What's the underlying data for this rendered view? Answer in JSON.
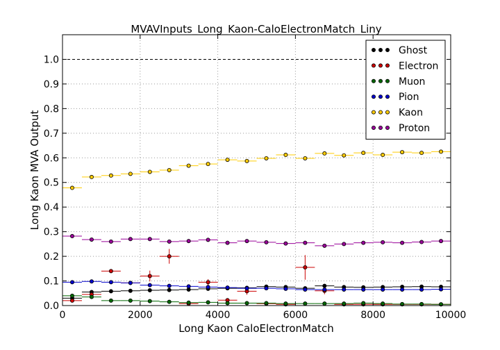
{
  "chart_data": {
    "type": "scatter",
    "title": "MVAVInputs_Long_Kaon-CaloElectronMatch_Liny",
    "xlabel": "Long Kaon CaloElectronMatch",
    "ylabel": "Long Kaon MVA Output",
    "xlim": [
      0,
      10000
    ],
    "ylim": [
      0,
      1.1
    ],
    "x_ticks": [
      0,
      2000,
      4000,
      6000,
      8000,
      10000
    ],
    "x_tick_labels": [
      "0",
      "2000",
      "4000",
      "6000",
      "8000",
      "10000"
    ],
    "y_ticks": [
      0.0,
      0.1,
      0.2,
      0.3,
      0.4,
      0.5,
      0.6,
      0.7,
      0.8,
      0.9,
      1.0
    ],
    "y_tick_labels": [
      "0.0",
      "0.1",
      "0.2",
      "0.3",
      "0.4",
      "0.5",
      "0.6",
      "0.7",
      "0.8",
      "0.9",
      "1.0"
    ],
    "grid": true,
    "reference_line_y": 1.0,
    "legend_position": "top-right",
    "bin_width": 500,
    "x": [
      250,
      750,
      1250,
      1750,
      2250,
      2750,
      3250,
      3750,
      4250,
      4750,
      5250,
      5750,
      6250,
      6750,
      7250,
      7750,
      8250,
      8750,
      9250,
      9750
    ],
    "series": [
      {
        "name": "Ghost",
        "color": "#000000",
        "values": [
          0.03,
          0.055,
          0.058,
          0.06,
          0.062,
          0.063,
          0.065,
          0.068,
          0.07,
          0.072,
          0.077,
          0.075,
          0.07,
          0.08,
          0.075,
          0.074,
          0.075,
          0.076,
          0.077,
          0.076
        ],
        "errors": [
          0.002,
          0.002,
          0.002,
          0.002,
          0.002,
          0.002,
          0.002,
          0.002,
          0.002,
          0.002,
          0.002,
          0.002,
          0.002,
          0.002,
          0.002,
          0.002,
          0.002,
          0.002,
          0.002,
          0.002
        ]
      },
      {
        "name": "Electron",
        "color": "#cc0000",
        "values": [
          0.02,
          0.045,
          0.14,
          0.092,
          0.12,
          0.2,
          0.008,
          0.095,
          0.022,
          0.058,
          0.008,
          0.005,
          0.155,
          0.06,
          0.005,
          0.005,
          0.005,
          0.005,
          0.005,
          0.005
        ],
        "errors": [
          0.005,
          0.01,
          0.008,
          0.008,
          0.022,
          0.03,
          0.004,
          0.012,
          0.006,
          0.014,
          0.004,
          0.003,
          0.05,
          0.014,
          0.003,
          0.003,
          0.003,
          0.003,
          0.003,
          0.003
        ]
      },
      {
        "name": "Muon",
        "color": "#006600",
        "values": [
          0.04,
          0.035,
          0.02,
          0.02,
          0.018,
          0.015,
          0.012,
          0.013,
          0.01,
          0.01,
          0.01,
          0.008,
          0.008,
          0.008,
          0.008,
          0.01,
          0.008,
          0.006,
          0.006,
          0.005
        ],
        "errors": [
          0.002,
          0.002,
          0.002,
          0.002,
          0.002,
          0.002,
          0.002,
          0.002,
          0.002,
          0.002,
          0.002,
          0.002,
          0.002,
          0.002,
          0.002,
          0.002,
          0.002,
          0.002,
          0.002,
          0.002
        ]
      },
      {
        "name": "Pion",
        "color": "#0000cc",
        "values": [
          0.095,
          0.098,
          0.095,
          0.092,
          0.083,
          0.08,
          0.078,
          0.075,
          0.073,
          0.07,
          0.07,
          0.068,
          0.065,
          0.065,
          0.065,
          0.065,
          0.065,
          0.065,
          0.065,
          0.066
        ],
        "errors": [
          0.002,
          0.002,
          0.002,
          0.002,
          0.002,
          0.002,
          0.002,
          0.002,
          0.002,
          0.002,
          0.002,
          0.002,
          0.002,
          0.002,
          0.002,
          0.002,
          0.002,
          0.002,
          0.002,
          0.002
        ]
      },
      {
        "name": "Kaon",
        "color": "#ffcc00",
        "values": [
          0.478,
          0.522,
          0.528,
          0.535,
          0.543,
          0.55,
          0.568,
          0.575,
          0.592,
          0.587,
          0.598,
          0.612,
          0.598,
          0.618,
          0.61,
          0.62,
          0.612,
          0.623,
          0.62,
          0.625
        ],
        "errors": [
          0.003,
          0.003,
          0.003,
          0.003,
          0.003,
          0.003,
          0.003,
          0.003,
          0.003,
          0.003,
          0.003,
          0.003,
          0.003,
          0.003,
          0.003,
          0.003,
          0.003,
          0.003,
          0.003,
          0.003
        ]
      },
      {
        "name": "Proton",
        "color": "#990099",
        "values": [
          0.282,
          0.268,
          0.26,
          0.27,
          0.27,
          0.26,
          0.262,
          0.267,
          0.255,
          0.262,
          0.257,
          0.252,
          0.255,
          0.243,
          0.25,
          0.255,
          0.257,
          0.255,
          0.258,
          0.262
        ],
        "errors": [
          0.003,
          0.003,
          0.003,
          0.003,
          0.003,
          0.003,
          0.003,
          0.003,
          0.003,
          0.003,
          0.003,
          0.003,
          0.003,
          0.003,
          0.003,
          0.003,
          0.003,
          0.003,
          0.003,
          0.003
        ]
      }
    ]
  }
}
